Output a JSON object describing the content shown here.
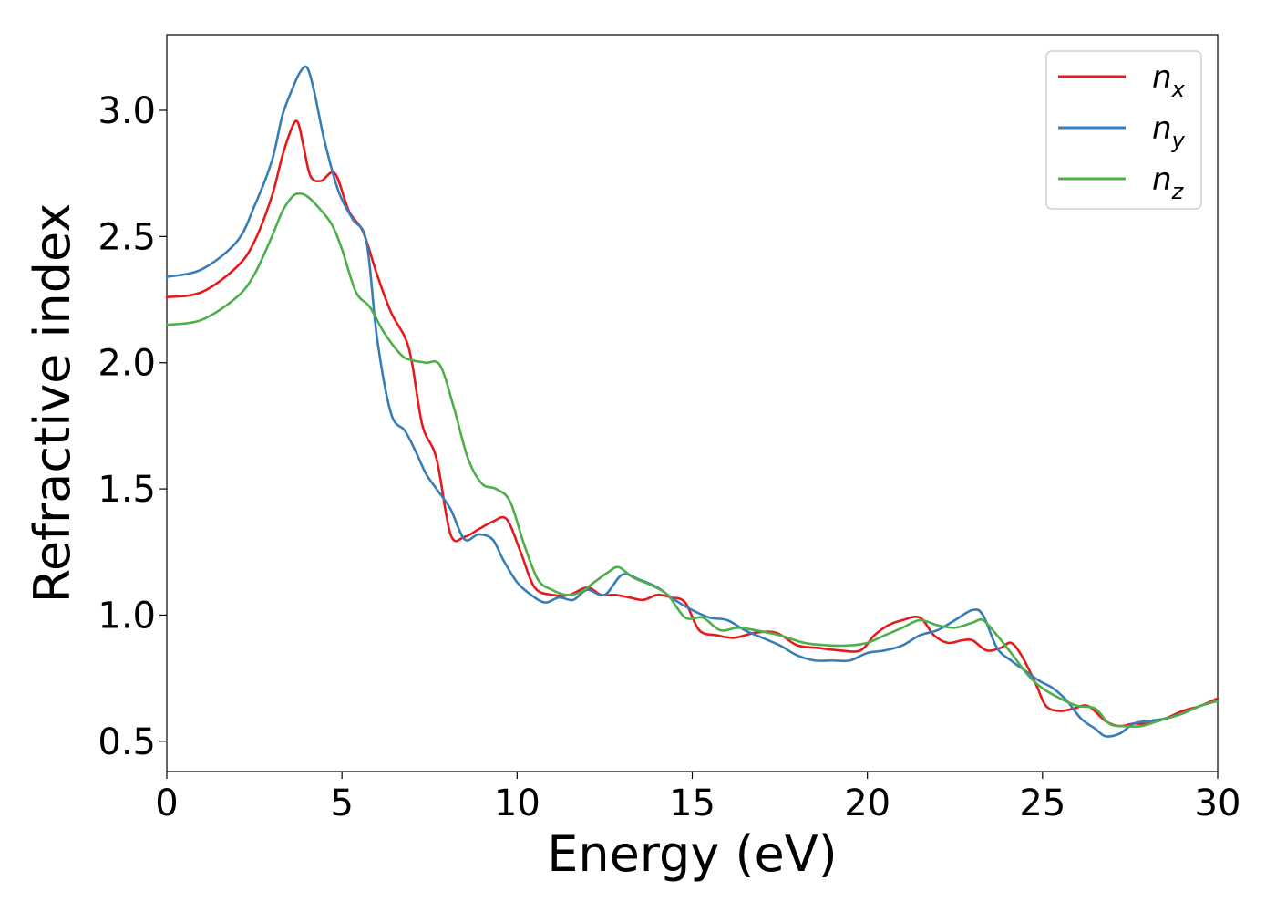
{
  "chart_data": {
    "type": "line",
    "title": "",
    "xlabel": "Energy (eV)",
    "ylabel": "Refractive index",
    "xlim": [
      0,
      30
    ],
    "ylim": [
      0.38,
      3.3
    ],
    "xticks": [
      0,
      5,
      10,
      15,
      20,
      25,
      30
    ],
    "xtick_labels": [
      "0",
      "5",
      "10",
      "15",
      "20",
      "25",
      "30"
    ],
    "yticks": [
      0.5,
      1.0,
      1.5,
      2.0,
      2.5,
      3.0
    ],
    "ytick_labels": [
      "0.5",
      "1.0",
      "1.5",
      "2.0",
      "2.5",
      "3.0"
    ],
    "grid": false,
    "legend_position": "top-right",
    "series": [
      {
        "name": "n",
        "subscript": "x",
        "color": "#e41a1c",
        "x": [
          0,
          1,
          2,
          2.5,
          3,
          3.3,
          3.6,
          3.75,
          3.9,
          4.1,
          4.4,
          4.8,
          5.2,
          5.6,
          6.0,
          6.4,
          6.8,
          7.0,
          7.3,
          7.7,
          8.1,
          8.5,
          8.9,
          9.3,
          9.7,
          10.1,
          10.5,
          11.0,
          11.5,
          12.0,
          12.4,
          12.8,
          13.2,
          13.6,
          14.0,
          14.4,
          14.8,
          15.2,
          15.7,
          16.2,
          16.8,
          17.4,
          18.0,
          18.6,
          19.2,
          19.8,
          20.2,
          20.6,
          21.0,
          21.5,
          21.9,
          22.3,
          22.7,
          23.0,
          23.4,
          23.8,
          24.1,
          24.4,
          24.8,
          25.1,
          25.5,
          25.9,
          26.3,
          26.8,
          27.2,
          27.6,
          28.0,
          28.5,
          29.0,
          29.5,
          30.0
        ],
        "y": [
          2.26,
          2.28,
          2.38,
          2.48,
          2.66,
          2.82,
          2.94,
          2.95,
          2.86,
          2.74,
          2.72,
          2.75,
          2.6,
          2.52,
          2.35,
          2.2,
          2.1,
          2.0,
          1.75,
          1.62,
          1.32,
          1.31,
          1.34,
          1.37,
          1.38,
          1.25,
          1.11,
          1.08,
          1.08,
          1.11,
          1.08,
          1.08,
          1.07,
          1.06,
          1.08,
          1.07,
          1.05,
          0.94,
          0.92,
          0.91,
          0.93,
          0.93,
          0.88,
          0.87,
          0.86,
          0.86,
          0.92,
          0.96,
          0.98,
          0.99,
          0.92,
          0.89,
          0.9,
          0.9,
          0.86,
          0.87,
          0.89,
          0.84,
          0.73,
          0.64,
          0.62,
          0.63,
          0.64,
          0.58,
          0.56,
          0.57,
          0.57,
          0.59,
          0.62,
          0.64,
          0.67
        ]
      },
      {
        "name": "n",
        "subscript": "y",
        "color": "#377eb8",
        "x": [
          0,
          1,
          2,
          2.5,
          3,
          3.3,
          3.6,
          3.8,
          4.0,
          4.2,
          4.5,
          4.9,
          5.3,
          5.7,
          6.0,
          6.4,
          6.8,
          7.1,
          7.4,
          7.7,
          8.1,
          8.5,
          8.9,
          9.3,
          9.6,
          10.0,
          10.4,
          10.8,
          11.2,
          11.6,
          12.0,
          12.5,
          13.0,
          13.5,
          14.0,
          14.5,
          15.0,
          15.5,
          16.0,
          16.5,
          17.0,
          17.5,
          18.0,
          18.5,
          19.0,
          19.5,
          20.0,
          20.5,
          21.0,
          21.5,
          22.0,
          22.5,
          23.0,
          23.3,
          23.7,
          24.1,
          24.5,
          24.9,
          25.3,
          25.7,
          26.1,
          26.5,
          26.8,
          27.2,
          27.6,
          28.0,
          28.5,
          29.0,
          29.5,
          30.0
        ],
        "y": [
          2.34,
          2.37,
          2.48,
          2.62,
          2.8,
          2.98,
          3.09,
          3.15,
          3.17,
          3.08,
          2.88,
          2.68,
          2.57,
          2.48,
          2.1,
          1.8,
          1.73,
          1.65,
          1.56,
          1.5,
          1.42,
          1.3,
          1.32,
          1.3,
          1.22,
          1.13,
          1.08,
          1.05,
          1.07,
          1.06,
          1.1,
          1.08,
          1.16,
          1.14,
          1.11,
          1.06,
          1.02,
          0.99,
          0.98,
          0.94,
          0.91,
          0.88,
          0.84,
          0.82,
          0.82,
          0.82,
          0.85,
          0.86,
          0.88,
          0.92,
          0.94,
          0.98,
          1.02,
          1.0,
          0.87,
          0.82,
          0.78,
          0.74,
          0.71,
          0.66,
          0.59,
          0.55,
          0.52,
          0.53,
          0.57,
          0.58,
          0.59,
          0.61,
          0.64,
          0.66
        ]
      },
      {
        "name": "n",
        "subscript": "z",
        "color": "#4daf4a",
        "x": [
          0,
          1,
          2,
          2.5,
          3,
          3.3,
          3.6,
          3.8,
          4.0,
          4.3,
          4.7,
          5.0,
          5.4,
          5.8,
          6.2,
          6.7,
          7.0,
          7.4,
          7.8,
          8.2,
          8.6,
          9.0,
          9.4,
          9.8,
          10.2,
          10.6,
          11.0,
          11.4,
          11.8,
          12.2,
          12.6,
          12.9,
          13.3,
          13.8,
          14.3,
          14.8,
          15.3,
          15.8,
          16.3,
          16.8,
          17.5,
          18.2,
          18.9,
          19.5,
          20.0,
          20.5,
          21.0,
          21.5,
          22.0,
          22.5,
          23.0,
          23.3,
          23.7,
          24.1,
          24.6,
          25.0,
          25.5,
          26.0,
          26.5,
          26.9,
          27.3,
          27.8,
          28.3,
          29.0,
          29.5,
          30.0
        ],
        "y": [
          2.15,
          2.17,
          2.26,
          2.35,
          2.5,
          2.6,
          2.66,
          2.67,
          2.66,
          2.62,
          2.55,
          2.45,
          2.28,
          2.22,
          2.12,
          2.03,
          2.01,
          2.0,
          1.99,
          1.82,
          1.62,
          1.52,
          1.5,
          1.45,
          1.28,
          1.14,
          1.1,
          1.08,
          1.09,
          1.13,
          1.17,
          1.19,
          1.15,
          1.12,
          1.08,
          0.99,
          0.99,
          0.94,
          0.95,
          0.94,
          0.92,
          0.89,
          0.88,
          0.88,
          0.89,
          0.92,
          0.95,
          0.98,
          0.96,
          0.95,
          0.97,
          0.98,
          0.92,
          0.85,
          0.76,
          0.71,
          0.67,
          0.64,
          0.63,
          0.57,
          0.56,
          0.56,
          0.58,
          0.61,
          0.64,
          0.66
        ]
      }
    ]
  }
}
